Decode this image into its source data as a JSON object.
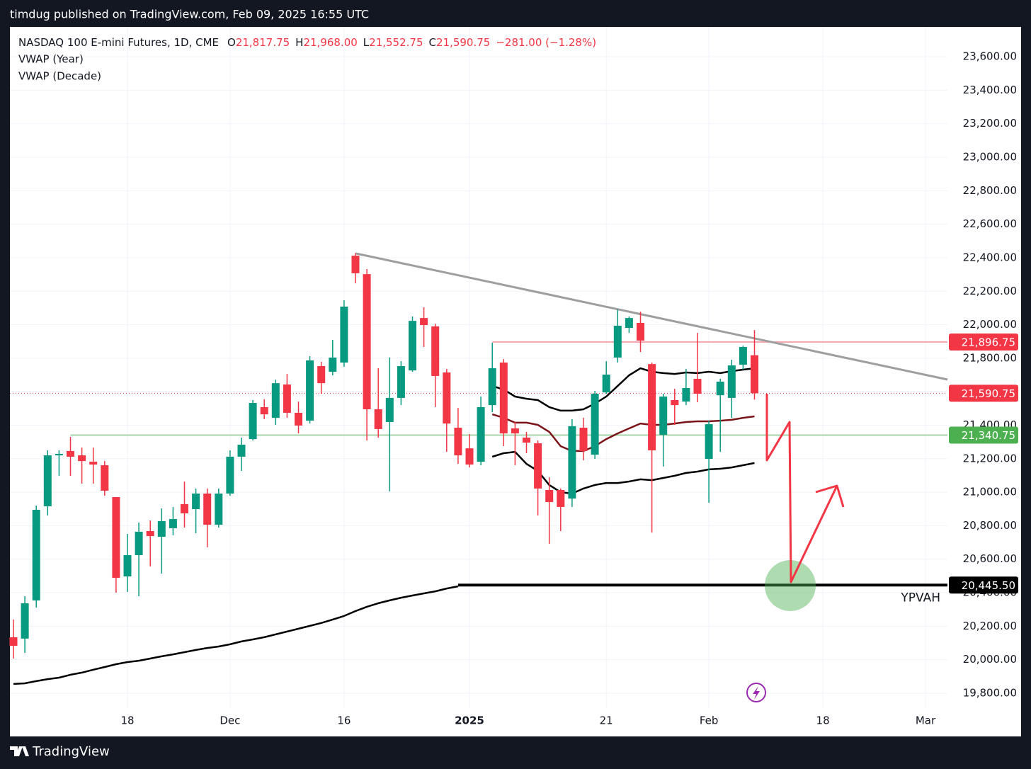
{
  "chart_data": {
    "type": "candlestick",
    "publisher_line": "timdug published on TradingView.com, Feb 09, 2025 16:55 UTC",
    "title": "NASDAQ 100 E-mini Futures, 1D, CME",
    "legend_values": [
      {
        "key": "O",
        "value": "21,817.75"
      },
      {
        "key": "H",
        "value": "21,968.00"
      },
      {
        "key": "L",
        "value": "21,552.75"
      },
      {
        "key": "C",
        "value": "21,590.75"
      }
    ],
    "change": "−281.00 (−1.28%)",
    "brand": "TradingView",
    "up_color": "#089981",
    "down_color": "#f23645",
    "categories": [
      null,
      null,
      null,
      null,
      null,
      null,
      null,
      null,
      null,
      null,
      "18",
      null,
      null,
      null,
      null,
      null,
      null,
      null,
      null,
      "Dec",
      null,
      null,
      null,
      null,
      null,
      null,
      null,
      null,
      null,
      "16",
      null,
      null,
      null,
      null,
      null,
      null,
      null,
      null,
      null,
      null,
      "2025",
      null,
      null,
      null,
      null,
      null,
      null,
      null,
      null,
      null,
      null,
      null,
      "21",
      null,
      null,
      null,
      null,
      null,
      null,
      null,
      null,
      "Feb",
      null,
      null,
      null,
      null,
      null,
      null,
      null,
      null,
      null,
      "18",
      null,
      null,
      null,
      null,
      null,
      null,
      null,
      null,
      "Mar",
      null
    ],
    "open": [
      20134,
      20126,
      20354,
      20916,
      21220,
      21246,
      21220,
      21182,
      21161,
      20971,
      20497,
      20624,
      20768,
      20734,
      20785,
      20929,
      20899,
      20992,
      20806,
      20992,
      21212,
      21317,
      21508,
      21444,
      21643,
      21474,
      21427,
      21753,
      21719,
      21774,
      22412,
      22302,
      21495,
      21419,
      21563,
      21727,
      22040,
      21990,
      21715,
      21385,
      21262,
      21182,
      21520,
      21774,
      21381,
      21326,
      21292,
      21013,
      21013,
      20962,
      21385,
      21224,
      21596,
      21804,
      21981,
      22011,
      21765,
      21343,
      21550,
      21541,
      21677,
      21199,
      21579,
      21563,
      21761,
      21817.75,
      null,
      null,
      null,
      null,
      null,
      null,
      null,
      null,
      null,
      null,
      null,
      null,
      null,
      null,
      null,
      null
    ],
    "high": [
      20240,
      20379,
      20920,
      21250,
      21250,
      21330,
      21267,
      21267,
      21186,
      20971,
      20751,
      20819,
      20831,
      20903,
      20912,
      21064,
      21022,
      21022,
      21022,
      21250,
      21326,
      21550,
      21555,
      21672,
      21706,
      21541,
      21812,
      21778,
      21909,
      22146,
      22429,
      22332,
      21740,
      21804,
      21782,
      22049,
      22104,
      22006,
      21736,
      21503,
      21347,
      21571,
      21892,
      21795,
      21419,
      21360,
      21309,
      21089,
      21022,
      21436,
      21444,
      21605,
      21782,
      22091,
      22049,
      22078,
      21774,
      21588,
      21617,
      21736,
      21951,
      21427,
      21677,
      21791,
      21875,
      21968,
      null,
      null,
      null,
      null,
      null,
      null,
      null,
      null,
      null,
      null,
      null,
      null,
      null,
      null,
      null,
      null
    ],
    "low": [
      20007,
      20041,
      20311,
      20861,
      21098,
      21098,
      21051,
      21051,
      20979,
      20400,
      20404,
      20379,
      20557,
      20514,
      20743,
      20789,
      20755,
      20671,
      20789,
      20979,
      21127,
      21309,
      21436,
      21402,
      21444,
      21351,
      21410,
      21588,
      21698,
      21749,
      22247,
      21309,
      21326,
      21005,
      21520,
      21719,
      21867,
      21508,
      21241,
      21169,
      21148,
      21161,
      21478,
      21275,
      21161,
      21233,
      20861,
      20692,
      20768,
      20912,
      21191,
      21199,
      21588,
      21774,
      21951,
      21837,
      20759,
      21153,
      21402,
      21520,
      21537,
      20937,
      21241,
      21444,
      21732,
      21552.75,
      null,
      null,
      null,
      null,
      null,
      null,
      null,
      null,
      null,
      null,
      null,
      null,
      null,
      null,
      null,
      null
    ],
    "close": [
      20083,
      20337,
      20895,
      21220,
      21229,
      21212,
      21186,
      21165,
      21009,
      20489,
      20624,
      20764,
      20738,
      20827,
      20840,
      20874,
      20992,
      20806,
      20992,
      21212,
      21284,
      21533,
      21465,
      21651,
      21474,
      21398,
      21787,
      21651,
      21804,
      22108,
      22307,
      21495,
      21377,
      21563,
      21753,
      22023,
      21998,
      21694,
      21410,
      21220,
      21165,
      21508,
      21740,
      21351,
      21351,
      21296,
      21022,
      20941,
      20912,
      21394,
      21246,
      21588,
      21702,
      21994,
      22040,
      21905,
      21250,
      21571,
      21520,
      21622,
      21588,
      21406,
      21660,
      21757,
      21867,
      21590.75,
      null,
      null,
      null,
      null,
      null,
      null,
      null,
      null,
      null,
      null,
      null,
      null,
      null,
      null,
      null,
      null
    ],
    "series": [
      {
        "name": "VWAP (Year)",
        "color": "#7b1418",
        "band_color": "#000000",
        "values": [
          null,
          null,
          null,
          null,
          null,
          null,
          null,
          null,
          null,
          null,
          null,
          null,
          null,
          null,
          null,
          null,
          null,
          null,
          null,
          null,
          null,
          null,
          null,
          null,
          null,
          null,
          null,
          null,
          null,
          null,
          null,
          null,
          null,
          null,
          null,
          null,
          null,
          null,
          null,
          null,
          null,
          null,
          21465,
          21444,
          21415,
          21415,
          21402,
          21360,
          21275,
          21246,
          21246,
          21275,
          21317,
          21351,
          21381,
          21410,
          21402,
          21402,
          21410,
          21419,
          21423,
          21423,
          21427,
          21432,
          21444,
          21453,
          null,
          null,
          null,
          null,
          null,
          null,
          null,
          null,
          null,
          null,
          null,
          null,
          null,
          null,
          null,
          null
        ],
        "upper": [
          null,
          null,
          null,
          null,
          null,
          null,
          null,
          null,
          null,
          null,
          null,
          null,
          null,
          null,
          null,
          null,
          null,
          null,
          null,
          null,
          null,
          null,
          null,
          null,
          null,
          null,
          null,
          null,
          null,
          null,
          null,
          null,
          null,
          null,
          null,
          null,
          null,
          null,
          null,
          null,
          null,
          null,
          21634,
          21613,
          21571,
          21558,
          21550,
          21508,
          21487,
          21487,
          21495,
          21529,
          21571,
          21634,
          21698,
          21740,
          21719,
          21711,
          21706,
          21715,
          21711,
          21719,
          21711,
          21723,
          21732,
          21740,
          null,
          null,
          null,
          null,
          null,
          null,
          null,
          null,
          null,
          null,
          null,
          null,
          null,
          null,
          null,
          null
        ],
        "lower": [
          null,
          null,
          null,
          null,
          null,
          null,
          null,
          null,
          null,
          null,
          null,
          null,
          null,
          null,
          null,
          null,
          null,
          null,
          null,
          null,
          null,
          null,
          null,
          null,
          null,
          null,
          null,
          null,
          null,
          null,
          null,
          null,
          null,
          null,
          null,
          null,
          null,
          null,
          null,
          null,
          null,
          null,
          21212,
          21233,
          21241,
          21169,
          21127,
          21043,
          21000,
          20992,
          21022,
          21043,
          21055,
          21055,
          21064,
          21077,
          21072,
          21085,
          21098,
          21115,
          21123,
          21136,
          21140,
          21148,
          21161,
          21174,
          null,
          null,
          null,
          null,
          null,
          null,
          null,
          null,
          null,
          null,
          null,
          null,
          null,
          null,
          null,
          null
        ]
      },
      {
        "name": "VWAP (Decade)",
        "color": "#000000",
        "values": [
          19855,
          19859,
          19872,
          19884,
          19893,
          19910,
          19923,
          19940,
          19956,
          19973,
          19986,
          19994,
          20007,
          20020,
          20032,
          20045,
          20058,
          20070,
          20079,
          20092,
          20109,
          20121,
          20134,
          20151,
          20168,
          20185,
          20202,
          20219,
          20240,
          20261,
          20290,
          20316,
          20337,
          20354,
          20370,
          20383,
          20396,
          20408,
          20425,
          20438,
          null,
          null,
          null,
          null,
          null,
          null,
          null,
          null,
          null,
          null,
          null,
          null,
          null,
          null,
          null,
          null,
          null,
          null,
          null,
          null,
          null,
          null,
          null,
          null,
          null,
          null,
          null,
          null,
          null,
          null,
          null,
          null,
          null,
          null,
          null,
          null,
          null,
          null,
          null,
          null,
          null,
          null
        ]
      }
    ],
    "price_lines": [
      {
        "value": 21896.75,
        "label": "21,896.75",
        "color": "#f7a9b0",
        "box_color": "#f23645",
        "text_color": "#ffffff"
      },
      {
        "value": 21590.75,
        "label": "21,590.75",
        "color": "#f23645",
        "box_color": "#f23645",
        "text_color": "#ffffff",
        "dotted": true
      },
      {
        "value": 21340.75,
        "label": "21,340.75",
        "color": "#a5d6a7",
        "box_color": "#4caf50",
        "text_color": "#ffffff"
      },
      {
        "value": 20445.5,
        "label": "20,445.50",
        "color": "#000000",
        "box_color": "#000000",
        "text_color": "#ffffff",
        "note": "YPVAH"
      }
    ],
    "ylim": [
      19711,
      23778
    ],
    "yticks": [
      {
        "value": 23600,
        "label": "23,600.00"
      },
      {
        "value": 23400,
        "label": "23,400.00"
      },
      {
        "value": 23200,
        "label": "23,200.00"
      },
      {
        "value": 23000,
        "label": "23,000.00"
      },
      {
        "value": 22800,
        "label": "22,800.00"
      },
      {
        "value": 22600,
        "label": "22,600.00"
      },
      {
        "value": 22400,
        "label": "22,400.00"
      },
      {
        "value": 22200,
        "label": "22,200.00"
      },
      {
        "value": 22000,
        "label": "22,000.00"
      },
      {
        "value": 21800,
        "label": "21,800.00"
      },
      {
        "value": 21600,
        "label": "21,600.00"
      },
      {
        "value": 21400,
        "label": "21,400.00"
      },
      {
        "value": 21200,
        "label": "21,200.00"
      },
      {
        "value": 21000,
        "label": "21,000.00"
      },
      {
        "value": 20800,
        "label": "20,800.00"
      },
      {
        "value": 20600,
        "label": "20,600.00"
      },
      {
        "value": 20400,
        "label": "20,400.00"
      },
      {
        "value": 20200,
        "label": "20,200.00"
      },
      {
        "value": 20000,
        "label": "20,000.00"
      },
      {
        "value": 19800,
        "label": "19,800.00"
      }
    ],
    "grid": true
  }
}
